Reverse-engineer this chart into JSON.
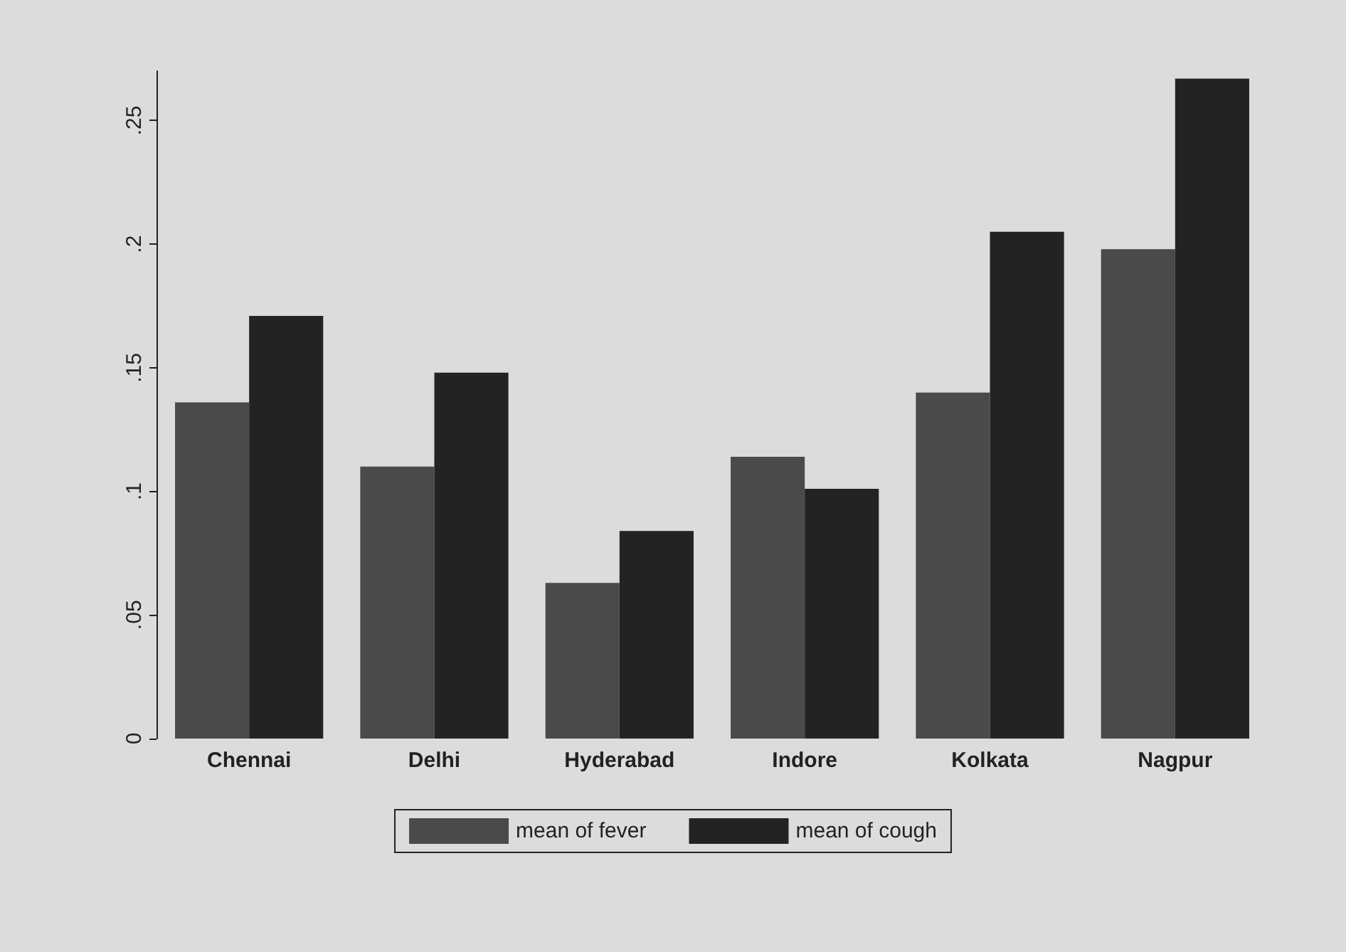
{
  "chart_data": {
    "type": "bar",
    "categories": [
      "Chennai",
      "Delhi",
      "Hyderabad",
      "Indore",
      "Kolkata",
      "Nagpur"
    ],
    "series": [
      {
        "name": "mean of fever",
        "color": "#4a4a4a",
        "values": [
          0.136,
          0.11,
          0.063,
          0.114,
          0.14,
          0.198
        ]
      },
      {
        "name": "mean of cough",
        "color": "#232323",
        "values": [
          0.171,
          0.148,
          0.084,
          0.101,
          0.205,
          0.267
        ]
      }
    ],
    "ylim": [
      0,
      0.27
    ],
    "yticks": [
      0,
      {
        "value": 0.05,
        "label": ".05"
      },
      {
        "value": 0.1,
        "label": ".1"
      },
      {
        "value": 0.15,
        "label": ".15"
      },
      {
        "value": 0.2,
        "label": ".2"
      },
      {
        "value": 0.25,
        "label": ".25"
      }
    ],
    "grid": false,
    "legend": "bottom"
  }
}
